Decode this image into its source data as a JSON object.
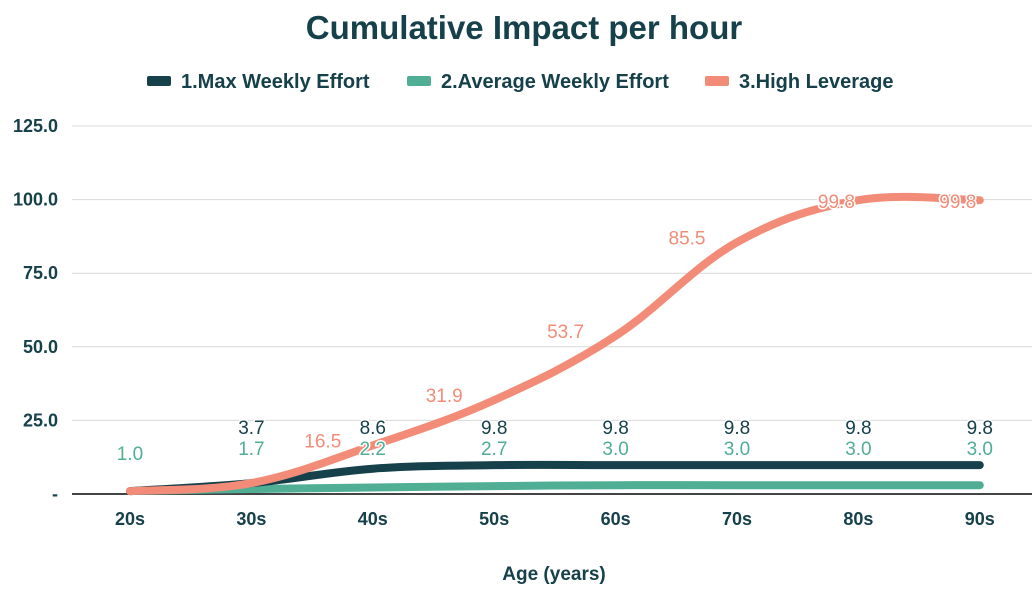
{
  "chart_data": {
    "type": "line",
    "title": "Cumulative Impact per hour",
    "xlabel": "Age (years)",
    "ylabel": "",
    "categories": [
      "20s",
      "30s",
      "40s",
      "50s",
      "60s",
      "70s",
      "80s",
      "90s"
    ],
    "ylim": [
      0,
      125
    ],
    "y_ticks": [
      "-",
      "25.0",
      "50.0",
      "75.0",
      "100.0",
      "125.0"
    ],
    "grid": true,
    "legend_position": "top",
    "series": [
      {
        "name": "1.Max Weekly Effort",
        "color": "#16404a",
        "values": [
          1.0,
          3.7,
          8.6,
          9.8,
          9.8,
          9.8,
          9.8,
          9.8
        ],
        "labels": [
          "",
          "3.7",
          "8.6",
          "9.8",
          "9.8",
          "9.8",
          "9.8",
          "9.8"
        ]
      },
      {
        "name": "2.Average Weekly Effort",
        "color": "#4fae94",
        "values": [
          1.0,
          1.7,
          2.2,
          2.7,
          3.0,
          3.0,
          3.0,
          3.0
        ],
        "labels": [
          "1.0",
          "1.7",
          "2.2",
          "2.7",
          "3.0",
          "3.0",
          "3.0",
          "3.0"
        ]
      },
      {
        "name": "3.High Leverage",
        "color": "#f28c78",
        "values": [
          1.0,
          3.7,
          16.5,
          31.9,
          53.7,
          85.5,
          99.8,
          99.8
        ],
        "labels": [
          "",
          "",
          "16.5",
          "31.9",
          "53.7",
          "85.5",
          "99.8",
          "99.8"
        ]
      }
    ]
  }
}
